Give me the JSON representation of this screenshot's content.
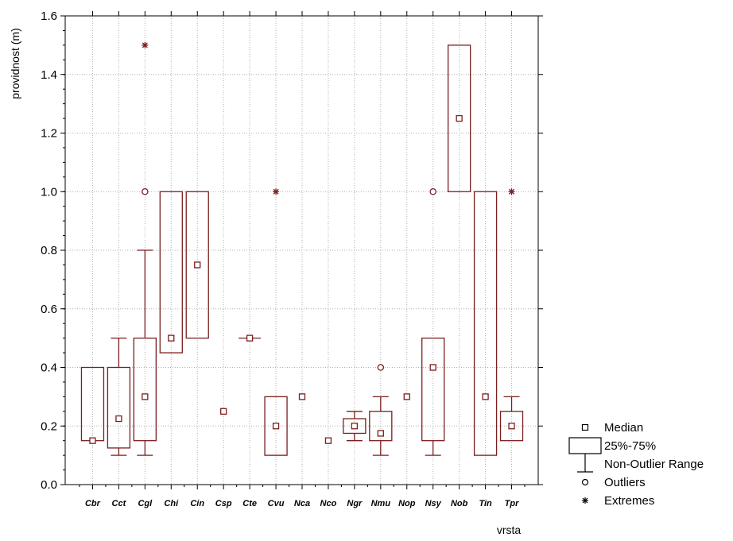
{
  "chart_data": {
    "type": "boxplot",
    "ylabel": "providnost (m)",
    "xlabel": "vrsta",
    "ylim": [
      0,
      1.6
    ],
    "yticks": [
      "0.0",
      "0.2",
      "0.4",
      "0.6",
      "0.8",
      "1.0",
      "1.2",
      "1.4",
      "1.6"
    ],
    "grid": true,
    "legend_position": "bottom-right",
    "legend": [
      "Median",
      "25%-75%",
      "Non-Outlier Range",
      "Outliers",
      "Extremes"
    ],
    "categories": [
      "Cbr",
      "Cct",
      "Cgl",
      "Chi",
      "Cin",
      "Csp",
      "Cte",
      "Cvu",
      "Nca",
      "Nco",
      "Ngr",
      "Nmu",
      "Nop",
      "Nsy",
      "Nob",
      "Tin",
      "Tpr"
    ],
    "boxes": [
      {
        "median": 0.15,
        "q1": 0.15,
        "q3": 0.4,
        "whisker_low": 0.15,
        "whisker_high": 0.4,
        "outliers": [],
        "extremes": []
      },
      {
        "median": 0.225,
        "q1": 0.125,
        "q3": 0.4,
        "whisker_low": 0.1,
        "whisker_high": 0.5,
        "outliers": [],
        "extremes": []
      },
      {
        "median": 0.3,
        "q1": 0.15,
        "q3": 0.5,
        "whisker_low": 0.1,
        "whisker_high": 0.8,
        "outliers": [
          1.0
        ],
        "extremes": [
          1.5
        ]
      },
      {
        "median": 0.5,
        "q1": 0.45,
        "q3": 1.0,
        "whisker_low": 0.45,
        "whisker_high": 1.0,
        "outliers": [],
        "extremes": []
      },
      {
        "median": 0.75,
        "q1": 0.5,
        "q3": 1.0,
        "whisker_low": 0.5,
        "whisker_high": 1.0,
        "outliers": [],
        "extremes": []
      },
      {
        "median": 0.25,
        "q1": 0.25,
        "q3": 0.25,
        "whisker_low": 0.25,
        "whisker_high": 0.25,
        "outliers": [],
        "extremes": []
      },
      {
        "median": 0.5,
        "q1": 0.5,
        "q3": 0.5,
        "whisker_low": 0.5,
        "whisker_high": 0.5,
        "outliers": [],
        "extremes": []
      },
      {
        "median": 0.2,
        "q1": 0.1,
        "q3": 0.3,
        "whisker_low": 0.1,
        "whisker_high": 0.3,
        "outliers": [],
        "extremes": [
          1.0
        ]
      },
      {
        "median": 0.3,
        "q1": 0.3,
        "q3": 0.3,
        "whisker_low": 0.3,
        "whisker_high": 0.3,
        "outliers": [],
        "extremes": []
      },
      {
        "median": 0.15,
        "q1": 0.15,
        "q3": 0.15,
        "whisker_low": 0.15,
        "whisker_high": 0.15,
        "outliers": [],
        "extremes": []
      },
      {
        "median": 0.2,
        "q1": 0.175,
        "q3": 0.225,
        "whisker_low": 0.15,
        "whisker_high": 0.25,
        "outliers": [],
        "extremes": []
      },
      {
        "median": 0.175,
        "q1": 0.15,
        "q3": 0.25,
        "whisker_low": 0.1,
        "whisker_high": 0.3,
        "outliers": [
          0.4
        ],
        "extremes": []
      },
      {
        "median": 0.3,
        "q1": 0.3,
        "q3": 0.3,
        "whisker_low": 0.3,
        "whisker_high": 0.3,
        "outliers": [],
        "extremes": []
      },
      {
        "median": 0.4,
        "q1": 0.15,
        "q3": 0.5,
        "whisker_low": 0.1,
        "whisker_high": 0.5,
        "outliers": [
          1.0
        ],
        "extremes": []
      },
      {
        "median": 1.25,
        "q1": 1.0,
        "q3": 1.5,
        "whisker_low": 1.0,
        "whisker_high": 1.5,
        "outliers": [],
        "extremes": []
      },
      {
        "median": 0.3,
        "q1": 0.1,
        "q3": 1.0,
        "whisker_low": 0.1,
        "whisker_high": 1.0,
        "outliers": [],
        "extremes": []
      },
      {
        "median": 0.2,
        "q1": 0.15,
        "q3": 0.25,
        "whisker_low": 0.15,
        "whisker_high": 0.3,
        "outliers": [],
        "extremes": [
          1.0
        ]
      }
    ],
    "colors": {
      "series": "#7b1e1e",
      "grid": "#b0b0b0",
      "axis": "#000000"
    }
  }
}
